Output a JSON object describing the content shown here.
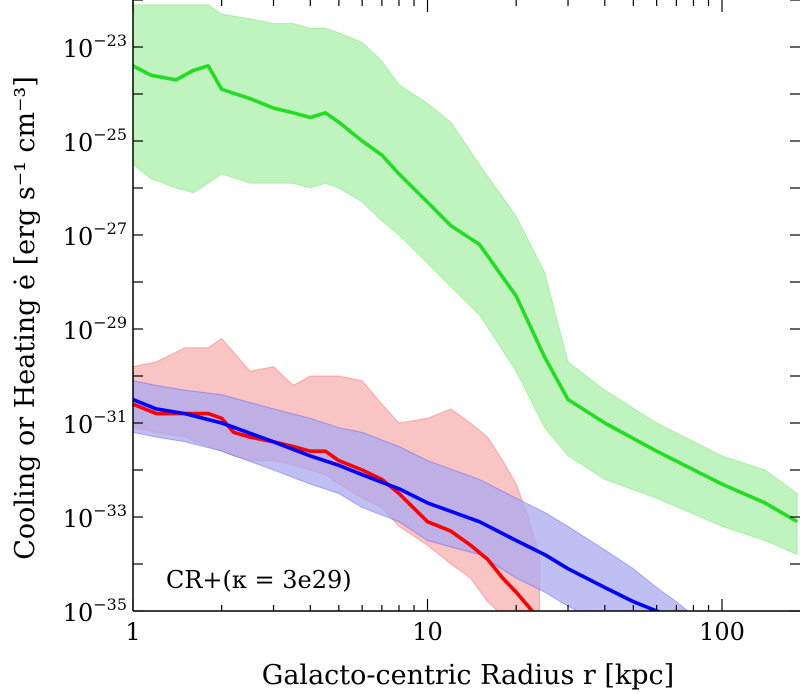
{
  "chart_data": {
    "type": "line",
    "title": "",
    "xlabel": "Galacto-centric Radius r [kpc]",
    "ylabel": "Cooling or Heating ė [erg s⁻¹ cm⁻³]",
    "xscale": "log",
    "yscale": "log",
    "xlim": [
      1,
      180
    ],
    "ylim_log10": [
      -35,
      -22.1
    ],
    "x_tick_labels": [
      "1",
      "10",
      "100"
    ],
    "y_tick_labels": [
      {
        "base": "10",
        "exp": "−23"
      },
      {
        "base": "10",
        "exp": "−25"
      },
      {
        "base": "10",
        "exp": "−27"
      },
      {
        "base": "10",
        "exp": "−29"
      },
      {
        "base": "10",
        "exp": "−31"
      },
      {
        "base": "10",
        "exp": "−33"
      },
      {
        "base": "10",
        "exp": "−35"
      }
    ],
    "annotation": "CR+(κ = 3e29)",
    "series": [
      {
        "name": "green",
        "color": "#22dd22",
        "band_color": "#aaf0a8",
        "x": [
          1.0,
          1.15,
          1.4,
          1.6,
          1.8,
          2.0,
          2.5,
          3.0,
          3.5,
          4.0,
          4.5,
          5.0,
          6.0,
          7.0,
          8.0,
          10.0,
          12.0,
          15.0,
          20.0,
          25.0,
          30.0,
          40.0,
          60.0,
          100.0,
          140.0,
          180.0
        ],
        "log_mid": [
          -23.4,
          -23.6,
          -23.7,
          -23.5,
          -23.4,
          -23.9,
          -24.1,
          -24.3,
          -24.4,
          -24.5,
          -24.4,
          -24.6,
          -25.0,
          -25.3,
          -25.7,
          -26.3,
          -26.8,
          -27.2,
          -28.3,
          -29.6,
          -30.5,
          -31.0,
          -31.6,
          -32.3,
          -32.7,
          -33.1
        ],
        "log_high": [
          -22.1,
          -22.1,
          -22.1,
          -22.1,
          -22.1,
          -22.3,
          -22.4,
          -22.5,
          -22.5,
          -22.6,
          -22.6,
          -22.7,
          -22.9,
          -23.3,
          -23.8,
          -24.2,
          -24.6,
          -25.5,
          -26.6,
          -27.8,
          -29.7,
          -30.3,
          -31.0,
          -31.7,
          -32.0,
          -32.5
        ],
        "log_low": [
          -25.5,
          -25.8,
          -26.0,
          -26.1,
          -25.9,
          -25.7,
          -25.9,
          -25.9,
          -25.9,
          -26.0,
          -25.9,
          -26.0,
          -26.3,
          -26.7,
          -27.0,
          -27.6,
          -28.1,
          -28.7,
          -29.9,
          -31.1,
          -31.7,
          -32.2,
          -32.6,
          -33.2,
          -33.5,
          -33.8
        ]
      },
      {
        "name": "red",
        "color": "#ff0000",
        "band_color": "#f7b0b0",
        "x": [
          1.0,
          1.2,
          1.5,
          1.8,
          2.0,
          2.2,
          2.5,
          3.0,
          3.5,
          4.0,
          4.5,
          5.0,
          6.0,
          7.0,
          8.0,
          10.0,
          12.0,
          14.0,
          16.0,
          18.0,
          20.0,
          22.0,
          24.0
        ],
        "log_mid": [
          -30.6,
          -30.8,
          -30.8,
          -30.8,
          -30.9,
          -31.2,
          -31.3,
          -31.4,
          -31.5,
          -31.6,
          -31.6,
          -31.8,
          -32.0,
          -32.2,
          -32.5,
          -33.1,
          -33.3,
          -33.6,
          -33.9,
          -34.3,
          -34.6,
          -34.9,
          -35.2
        ],
        "log_high": [
          -29.8,
          -29.7,
          -29.4,
          -29.4,
          -29.2,
          -29.5,
          -29.9,
          -29.8,
          -30.2,
          -30.0,
          -30.0,
          -30.0,
          -30.1,
          -30.6,
          -31.0,
          -30.9,
          -30.7,
          -31.0,
          -31.3,
          -31.8,
          -32.3,
          -33.0,
          -33.8
        ],
        "log_low": [
          -31.1,
          -31.2,
          -31.3,
          -31.5,
          -31.6,
          -31.7,
          -31.8,
          -31.8,
          -31.9,
          -32.0,
          -32.1,
          -32.3,
          -32.6,
          -32.8,
          -33.2,
          -33.6,
          -34.0,
          -34.3,
          -34.8,
          -35.1,
          -35.5,
          -35.8,
          -36.0
        ]
      },
      {
        "name": "blue",
        "color": "#0000ff",
        "band_color": "#aaaaf0",
        "x": [
          1.0,
          1.2,
          1.5,
          2.0,
          3.0,
          4.0,
          5.0,
          6.0,
          8.0,
          10.0,
          15.0,
          20.0,
          25.0,
          30.0,
          40.0,
          50.0,
          60.0,
          70.0,
          80.0
        ],
        "log_mid": [
          -30.5,
          -30.7,
          -30.8,
          -31.0,
          -31.4,
          -31.7,
          -31.9,
          -32.1,
          -32.4,
          -32.7,
          -33.1,
          -33.5,
          -33.8,
          -34.1,
          -34.5,
          -34.8,
          -35.0,
          -35.2,
          -35.4
        ],
        "log_high": [
          -30.1,
          -30.2,
          -30.3,
          -30.4,
          -30.7,
          -30.9,
          -31.1,
          -31.2,
          -31.5,
          -31.8,
          -32.2,
          -32.6,
          -32.9,
          -33.2,
          -33.7,
          -34.1,
          -34.5,
          -34.8,
          -35.1
        ],
        "log_low": [
          -31.2,
          -31.3,
          -31.4,
          -31.6,
          -32.0,
          -32.3,
          -32.5,
          -32.8,
          -33.1,
          -33.5,
          -33.8,
          -34.3,
          -34.6,
          -34.9,
          -35.3,
          -35.6,
          -35.9,
          -36.1,
          -36.3
        ]
      }
    ]
  }
}
